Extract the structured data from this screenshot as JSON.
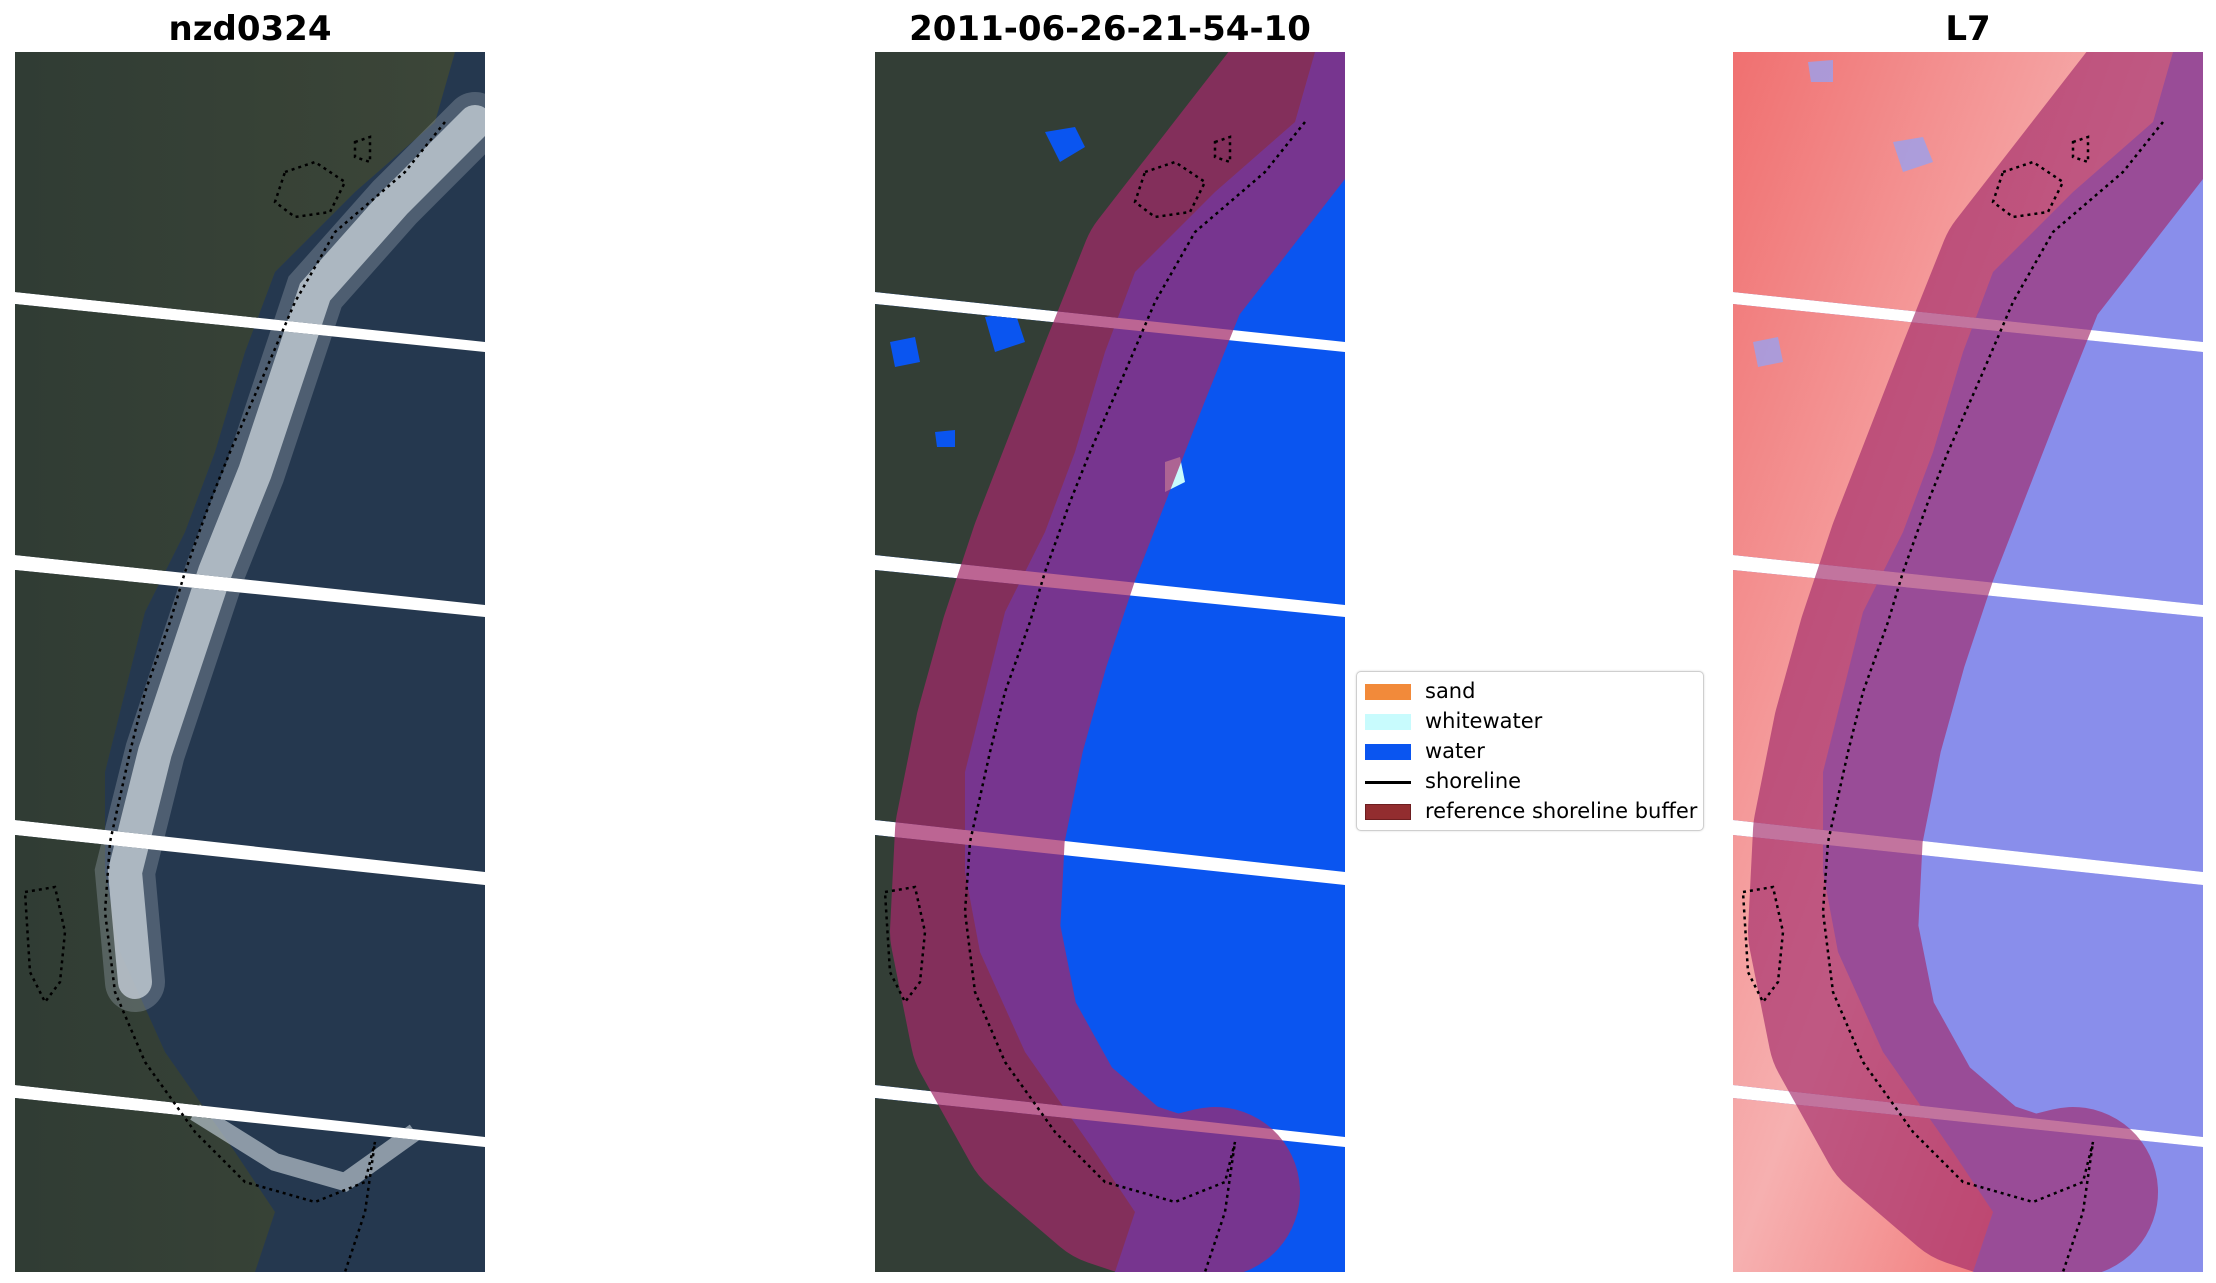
{
  "panels": [
    {
      "title": "nzd0324"
    },
    {
      "title": "2011-06-26-21-54-10"
    },
    {
      "title": "L7"
    }
  ],
  "legend": [
    {
      "label": "sand",
      "type": "patch",
      "color": "#f28a3a"
    },
    {
      "label": "whitewater",
      "type": "patch",
      "color": "#c8fbfd"
    },
    {
      "label": "water",
      "type": "patch",
      "color": "#0a55f0"
    },
    {
      "label": "shoreline",
      "type": "line",
      "color": "#000000"
    },
    {
      "label": "reference shoreline buffer",
      "type": "patch",
      "color": "#922d2f"
    }
  ],
  "colors": {
    "land": "#2d3a33",
    "ocean": "#243a52",
    "whitewater_rgb": "#c9d2d8",
    "water_class": "#0a55f0",
    "buffer_overlay": "#a22a6a",
    "index_positive": "#ef5a5a",
    "index_negative": "#6f75e6"
  }
}
